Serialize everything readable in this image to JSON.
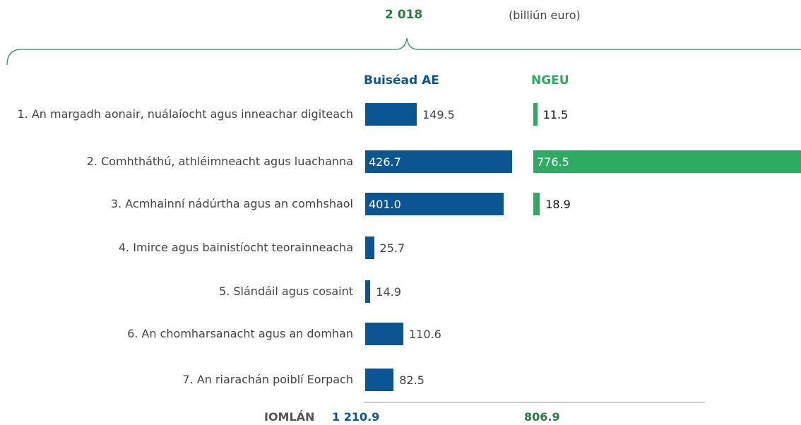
{
  "chart_data": {
    "type": "bar",
    "orientation": "horizontal",
    "title": "2 018",
    "subtitle": "(billiún euro)",
    "categories": [
      "1. An margadh aonair, nuálaíocht agus inneachar digiteach",
      "2. Comhtháthú, athléimneacht agus luachanna",
      "3. Acmhainní nádúrtha agus an comhshaol",
      "4. Imirce agus bainistíocht teorainneacha",
      "5. Slándáil agus cosaint",
      "6. An chomharsanacht agus an domhan",
      "7. An riarachán poiblí Eorpach"
    ],
    "series": [
      {
        "name": "Buiséad AE",
        "color": "#0a5592",
        "values": [
          149.5,
          426.7,
          401.0,
          25.7,
          14.9,
          110.6,
          82.5
        ],
        "value_labels": [
          "149.5",
          "426.7",
          "401.0",
          "25.7",
          "14.9",
          "110.6",
          "82.5"
        ],
        "total": {
          "value": 1210.9,
          "label": "1 210.9"
        }
      },
      {
        "name": "NGEU",
        "color": "#2eaa63",
        "values": [
          11.5,
          776.5,
          18.9,
          null,
          null,
          null,
          null
        ],
        "value_labels": [
          "11.5",
          "776.5",
          "18.9",
          null,
          null,
          null,
          null
        ],
        "total": 806.9
      }
    ],
    "total_label": "IOMLÁN"
  }
}
